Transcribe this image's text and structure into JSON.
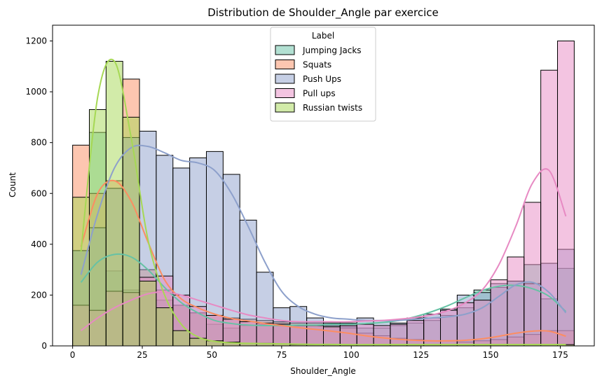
{
  "chart_data": {
    "type": "histogram",
    "title": "Distribution de Shoulder_Angle par exercice",
    "xlabel": "Shoulder_Angle",
    "ylabel": "Count",
    "xlim": [
      -7.2,
      187.2
    ],
    "ylim": [
      0,
      1262
    ],
    "xticks": [
      0,
      25,
      50,
      75,
      100,
      125,
      150,
      175
    ],
    "yticks": [
      0,
      200,
      400,
      600,
      800,
      1000,
      1200
    ],
    "bin_edges": [
      0,
      6,
      12,
      18,
      24,
      30,
      36,
      42,
      48,
      54,
      60,
      66,
      72,
      78,
      84,
      90,
      96,
      102,
      108,
      114,
      120,
      126,
      132,
      138,
      144,
      150,
      156,
      162,
      168,
      174,
      180
    ],
    "kde": true,
    "legend": {
      "title": "Label",
      "placement": "upper center"
    },
    "series": [
      {
        "name": "Jumping Jacks",
        "color": "#66c2a5",
        "values": [
          375,
          840,
          295,
          220,
          215,
          180,
          160,
          130,
          85,
          70,
          80,
          85,
          90,
          80,
          80,
          85,
          75,
          70,
          70,
          80,
          90,
          100,
          120,
          150,
          220,
          230,
          255,
          320,
          185,
          305
        ],
        "kde_y": [
          250,
          330,
          360,
          350,
          300,
          230,
          170,
          130,
          100,
          88,
          82,
          80,
          80,
          82,
          82,
          85,
          85,
          88,
          92,
          100,
          115,
          135,
          160,
          190,
          218,
          235,
          238,
          225,
          195,
          135
        ]
      },
      {
        "name": "Squats",
        "color": "#fc8d62",
        "values": [
          790,
          600,
          650,
          1050,
          300,
          220,
          160,
          130,
          120,
          110,
          105,
          100,
          95,
          90,
          90,
          80,
          70,
          50,
          40,
          30,
          25,
          20,
          20,
          15,
          20,
          25,
          35,
          45,
          60,
          60
        ],
        "kde_y": [
          390,
          600,
          650,
          570,
          410,
          260,
          185,
          150,
          125,
          108,
          98,
          88,
          80,
          72,
          65,
          58,
          50,
          40,
          32,
          26,
          22,
          20,
          20,
          22,
          28,
          38,
          50,
          58,
          58,
          38
        ]
      },
      {
        "name": "Push Ups",
        "color": "#8da0cb",
        "values": [
          375,
          465,
          620,
          820,
          845,
          750,
          700,
          740,
          765,
          675,
          495,
          290,
          150,
          155,
          110,
          90,
          90,
          110,
          100,
          90,
          110,
          125,
          145,
          200,
          210,
          245,
          255,
          245,
          325,
          380
        ],
        "kde_y": [
          280,
          520,
          700,
          780,
          785,
          760,
          730,
          720,
          690,
          600,
          470,
          330,
          215,
          155,
          125,
          110,
          105,
          100,
          100,
          100,
          105,
          110,
          115,
          125,
          150,
          195,
          240,
          250,
          210,
          130
        ]
      },
      {
        "name": "Pull ups",
        "color": "#e78ac3",
        "values": [
          160,
          140,
          215,
          210,
          270,
          275,
          200,
          155,
          120,
          105,
          95,
          90,
          85,
          80,
          80,
          75,
          80,
          85,
          80,
          85,
          100,
          110,
          140,
          170,
          180,
          260,
          350,
          565,
          1085,
          1200
        ],
        "kde_y": [
          60,
          110,
          150,
          180,
          205,
          212,
          200,
          180,
          160,
          140,
          122,
          110,
          100,
          95,
          95,
          95,
          95,
          98,
          100,
          105,
          112,
          122,
          140,
          170,
          220,
          320,
          470,
          640,
          690,
          510
        ]
      },
      {
        "name": "Russian twists",
        "color": "#a6d854",
        "values": [
          585,
          930,
          1120,
          900,
          255,
          150,
          60,
          30,
          20,
          15,
          10,
          10,
          8,
          5,
          5,
          5,
          5,
          5,
          5,
          5,
          5,
          5,
          5,
          5,
          5,
          5,
          5,
          5,
          5,
          5
        ],
        "kde_y": [
          370,
          980,
          1120,
          820,
          420,
          200,
          85,
          35,
          18,
          12,
          10,
          9,
          8,
          7,
          6,
          6,
          5,
          5,
          5,
          5,
          5,
          5,
          5,
          5,
          5,
          5,
          5,
          5,
          5,
          5
        ]
      }
    ]
  }
}
